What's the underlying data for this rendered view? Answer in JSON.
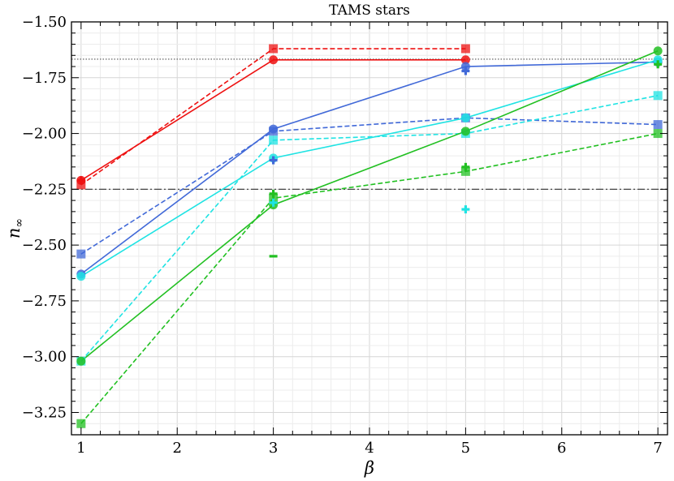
{
  "chart_data": {
    "type": "line",
    "title": "TAMS stars",
    "xlabel": "β",
    "ylabel": "n",
    "ylabel_subscript": "∞",
    "xlim": [
      0.9,
      7.1
    ],
    "ylim": [
      -3.35,
      -1.5
    ],
    "xticks": [
      "1",
      "2",
      "3",
      "4",
      "5",
      "6",
      "7"
    ],
    "yticks": [
      "−1.50",
      "−1.75",
      "−2.00",
      "−2.25",
      "−2.50",
      "−2.75",
      "−3.00",
      "−3.25"
    ],
    "grid": true,
    "reference_lines": [
      {
        "y": -1.667,
        "style": "dotted",
        "color": "#555555"
      },
      {
        "y": -2.25,
        "style": "dashdot",
        "color": "#333333"
      }
    ],
    "series": [
      {
        "color": "#ee1111",
        "style": "solid",
        "marker": "circle",
        "x": [
          1,
          3,
          5
        ],
        "y": [
          -2.21,
          -1.67,
          -1.67
        ]
      },
      {
        "color": "#ee1111",
        "style": "dashed",
        "marker": "square",
        "x": [
          1,
          3,
          5
        ],
        "y": [
          -2.23,
          -1.62,
          -1.62
        ]
      },
      {
        "color": "#4169d8",
        "style": "solid",
        "marker": "circle",
        "x": [
          1,
          3,
          5,
          7
        ],
        "y": [
          -2.63,
          -1.98,
          -1.7,
          -1.68
        ]
      },
      {
        "color": "#4169d8",
        "style": "dashed",
        "marker": "square",
        "x": [
          1,
          3,
          5,
          7
        ],
        "y": [
          -2.54,
          -1.99,
          -1.93,
          -1.96
        ]
      },
      {
        "color": "#1fe3e3",
        "style": "solid",
        "marker": "circle",
        "x": [
          1,
          3,
          5,
          7
        ],
        "y": [
          -2.64,
          -2.11,
          -1.93,
          -1.67
        ]
      },
      {
        "color": "#1fe3e3",
        "style": "dashed",
        "marker": "square",
        "x": [
          1,
          3,
          5,
          7
        ],
        "y": [
          -3.02,
          -2.03,
          -2.0,
          -1.83
        ]
      },
      {
        "color": "#22c022",
        "style": "solid",
        "marker": "circle",
        "x": [
          1,
          3,
          5,
          7
        ],
        "y": [
          -3.02,
          -2.32,
          -1.99,
          -1.63
        ]
      },
      {
        "color": "#22c022",
        "style": "dashed",
        "marker": "square",
        "x": [
          1,
          3,
          5,
          7
        ],
        "y": [
          -3.3,
          -2.29,
          -2.17,
          -2.0
        ]
      }
    ],
    "extra_markers": [
      {
        "color": "#ee1111",
        "marker": "plus",
        "x": 1,
        "y": -2.21
      },
      {
        "color": "#4169d8",
        "marker": "plus",
        "x": 3,
        "y": -2.12
      },
      {
        "color": "#4169d8",
        "marker": "plus",
        "x": 5,
        "y": -1.72
      },
      {
        "color": "#1fe3e3",
        "marker": "plus",
        "x": 3,
        "y": -2.31
      },
      {
        "color": "#1fe3e3",
        "marker": "plus",
        "x": 5,
        "y": -2.34
      },
      {
        "color": "#1fe3e3",
        "marker": "plus",
        "x": 7,
        "y": -1.68
      },
      {
        "color": "#22c022",
        "marker": "minus",
        "x": 3,
        "y": -2.55
      },
      {
        "color": "#22c022",
        "marker": "plus",
        "x": 3,
        "y": -2.27
      },
      {
        "color": "#22c022",
        "marker": "plus",
        "x": 5,
        "y": -2.15
      },
      {
        "color": "#22c022",
        "marker": "plus",
        "x": 7,
        "y": -1.69
      }
    ]
  }
}
